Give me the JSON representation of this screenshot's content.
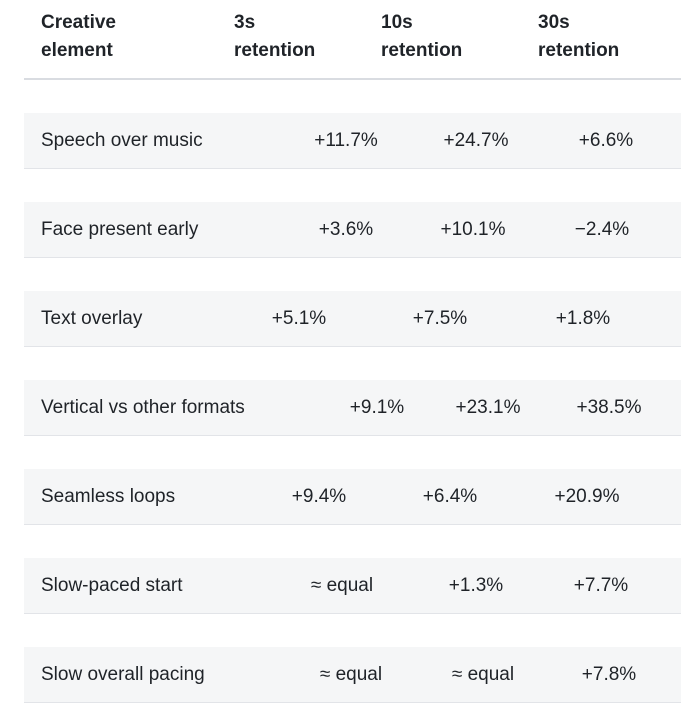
{
  "table": {
    "headers": [
      "Creative\nelement",
      "3s\nretention",
      "10s\nretention",
      "30s\nretention"
    ],
    "rows": [
      {
        "element": "Speech over music",
        "r3s": "+11.7%",
        "r10s": "+24.7%",
        "r30s": "+6.6%"
      },
      {
        "element": "Face present early",
        "r3s": "+3.6%",
        "r10s": "+10.1%",
        "r30s": "−2.4%"
      },
      {
        "element": "Text overlay",
        "r3s": "+5.1%",
        "r10s": "+7.5%",
        "r30s": "+1.8%"
      },
      {
        "element": "Vertical vs other formats",
        "r3s": "+9.1%",
        "r10s": "+23.1%",
        "r30s": "+38.5%"
      },
      {
        "element": "Seamless loops",
        "r3s": "+9.4%",
        "r10s": "+6.4%",
        "r30s": "+20.9%"
      },
      {
        "element": "Slow-paced start",
        "r3s": "≈ equal",
        "r10s": "+1.3%",
        "r30s": "+7.7%"
      },
      {
        "element": "Slow overall pacing",
        "r3s": "≈ equal",
        "r10s": "≈ equal",
        "r30s": "+7.8%"
      }
    ]
  }
}
